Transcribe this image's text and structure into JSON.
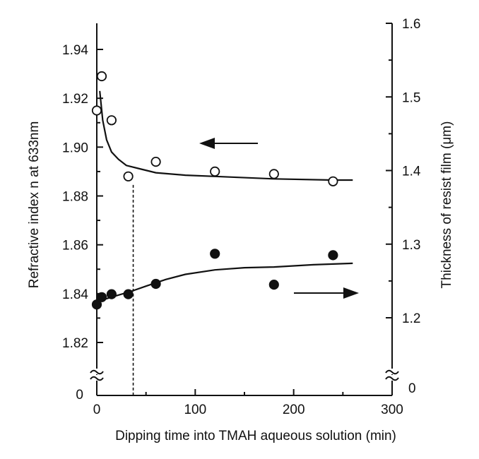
{
  "chart_data": {
    "type": "scatter",
    "xlabel": "Dipping time into TMAH aqueous solution  (min)",
    "ylabel_left": "Refractive index  n  at 633nm",
    "ylabel_right": "Thickness of resist film  (μm)",
    "xlim": [
      0,
      300
    ],
    "xticks": [
      0,
      100,
      200,
      300
    ],
    "ylim_left": [
      1.8,
      1.95
    ],
    "yticks_left": [
      1.82,
      1.84,
      1.86,
      1.88,
      1.9,
      1.92,
      1.94
    ],
    "ylim_right": [
      1.1,
      1.6
    ],
    "yticks_right": [
      1.2,
      1.3,
      1.4,
      1.5,
      1.6
    ],
    "axis_break_label": "0",
    "series": [
      {
        "name": "Refractive index",
        "axis": "left",
        "marker": "open-circle",
        "arrow": "left",
        "points": [
          [
            0,
            1.915
          ],
          [
            5,
            1.929
          ],
          [
            15,
            1.911
          ],
          [
            32,
            1.888
          ],
          [
            60,
            1.894
          ],
          [
            120,
            1.89
          ],
          [
            180,
            1.889
          ],
          [
            240,
            1.886
          ]
        ],
        "fit": [
          [
            3,
            1.923
          ],
          [
            6,
            1.911
          ],
          [
            10,
            1.903
          ],
          [
            15,
            1.898
          ],
          [
            22,
            1.895
          ],
          [
            30,
            1.8925
          ],
          [
            45,
            1.891
          ],
          [
            60,
            1.8895
          ],
          [
            90,
            1.8885
          ],
          [
            120,
            1.888
          ],
          [
            180,
            1.887
          ],
          [
            240,
            1.8865
          ],
          [
            260,
            1.8865
          ]
        ]
      },
      {
        "name": "Thickness of resist film",
        "axis": "right",
        "marker": "filled-circle",
        "arrow": "right",
        "points": [
          [
            0,
            1.218
          ],
          [
            5,
            1.228
          ],
          [
            15,
            1.232
          ],
          [
            32,
            1.232
          ],
          [
            60,
            1.246
          ],
          [
            120,
            1.287
          ],
          [
            180,
            1.245
          ],
          [
            240,
            1.285
          ]
        ],
        "fit": [
          [
            0,
            1.22
          ],
          [
            10,
            1.226
          ],
          [
            20,
            1.23
          ],
          [
            35,
            1.236
          ],
          [
            50,
            1.243
          ],
          [
            70,
            1.252
          ],
          [
            90,
            1.259
          ],
          [
            120,
            1.265
          ],
          [
            150,
            1.268
          ],
          [
            180,
            1.269
          ],
          [
            220,
            1.272
          ],
          [
            260,
            1.274
          ]
        ]
      }
    ],
    "reference_line": {
      "x": 37,
      "style": "dashed"
    }
  }
}
